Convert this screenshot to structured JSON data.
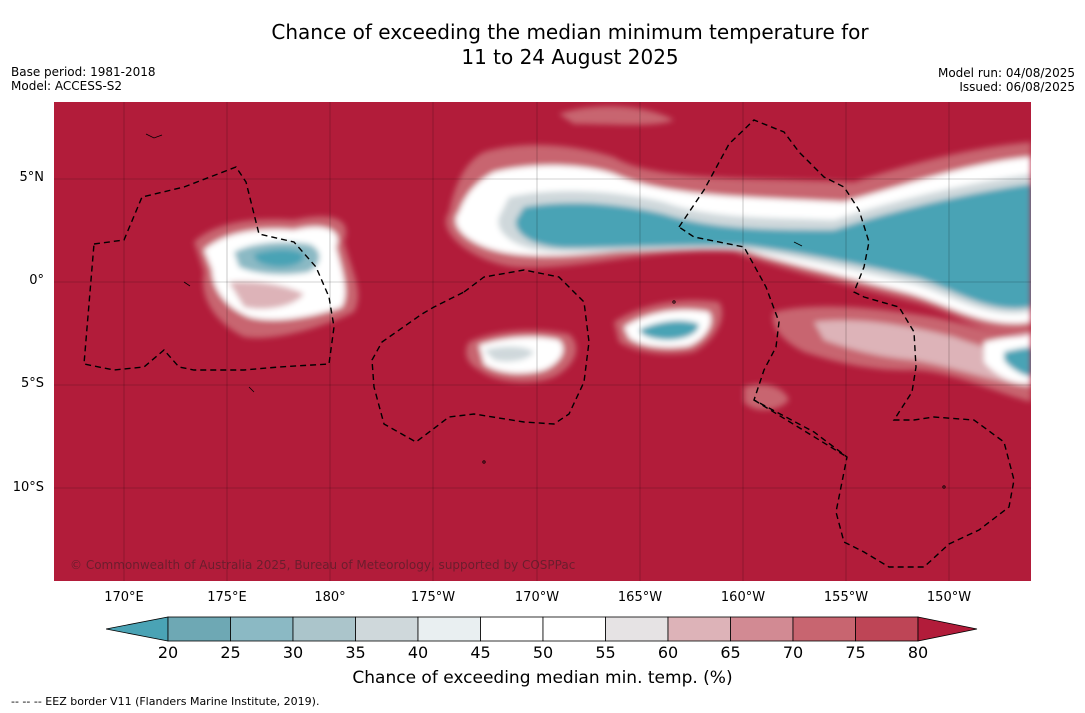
{
  "title_line1": "Chance of exceeding the median minimum temperature for",
  "title_line2": "11 to 24 August 2025",
  "base_period": "Base period: 1981-2018",
  "model": "Model: ACCESS-S2",
  "model_run": "Model run: 04/08/2025",
  "issued": "Issued: 06/08/2025",
  "copyright": "© Commonwealth of Australia 2025, Bureau of Meteorology, supported by COSPPac",
  "lat_labels": [
    "5°N",
    "0°",
    "5°S",
    "10°S"
  ],
  "lon_labels": [
    "170°E",
    "175°E",
    "180°",
    "175°W",
    "170°W",
    "165°W",
    "160°W",
    "155°W",
    "150°W"
  ],
  "colorbar": {
    "ticks": [
      "20",
      "25",
      "30",
      "35",
      "40",
      "45",
      "50",
      "55",
      "60",
      "65",
      "70",
      "75",
      "80"
    ],
    "colors": [
      "#6ea8b4",
      "#8bb9c4",
      "#abc5cb",
      "#cfd8db",
      "#e9eff1",
      "#ffffff",
      "#ffffff",
      "#e6e3e4",
      "#ddb3b8",
      "#d28a93",
      "#c86570",
      "#be4556"
    ],
    "low_extend_color": "#4aa3b5",
    "high_extend_color": "#b21c3a",
    "label": "Chance of exceeding median min. temp. (%)"
  },
  "colors": {
    "background_high": "#b21c3a",
    "low": "#4aa3b5"
  },
  "legend_note": "--  --  -- EEZ border V11 (Flanders Marine Institute, 2019)."
}
